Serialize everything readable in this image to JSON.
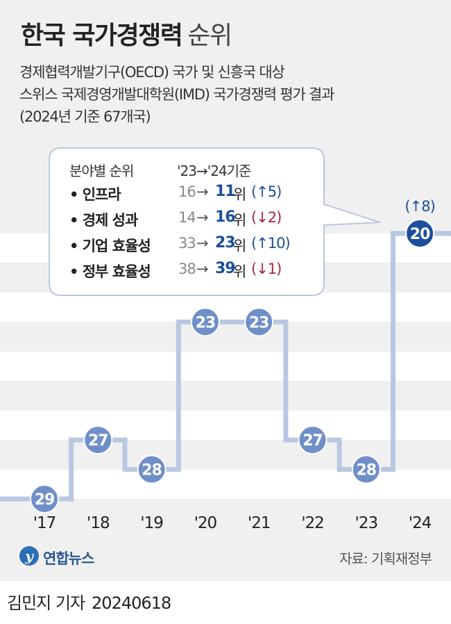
{
  "header": {
    "title_bold": "한국 국가경쟁력",
    "title_light": "순위",
    "subtitle_lines": [
      "경제협력개발기구(OECD) 국가 및 신흥국 대상",
      "스위스 국제경영개발대학원(IMD) 국가경쟁력 평가 결과",
      "(2024년 기준 67개국)"
    ]
  },
  "chart_data": {
    "type": "line",
    "step": true,
    "x": [
      "'17",
      "'18",
      "'19",
      "'20",
      "'21",
      "'22",
      "'23",
      "'24"
    ],
    "series": [
      {
        "values": [
          29,
          27,
          28,
          23,
          23,
          27,
          28,
          20
        ]
      }
    ],
    "value_labels": [
      "29",
      "27",
      "28",
      "23",
      "23",
      "27",
      "28",
      "20"
    ],
    "y_inverted": true,
    "ylim": [
      29,
      20
    ],
    "grid": true,
    "annotation": "(↑8)",
    "colors": {
      "line": "#b9c8e2",
      "marker": "#6f8fc9",
      "marker_last": "#1b4f9c",
      "marker_text": "#ffffff"
    }
  },
  "infobox": {
    "header_left": "분야별 순위",
    "header_right": "'23→'24기준",
    "rows": [
      {
        "name": "• 인프라",
        "prev": "16",
        "arrow": "→",
        "cur": "11",
        "unit": "위",
        "change": "(↑5)",
        "dir": "up"
      },
      {
        "name": "• 경제 성과",
        "prev": "14",
        "arrow": "→",
        "cur": "16",
        "unit": "위",
        "change": "(↓2)",
        "dir": "down"
      },
      {
        "name": "• 기업 효율성",
        "prev": "33",
        "arrow": "→",
        "cur": "23",
        "unit": "위",
        "change": "(↑10)",
        "dir": "up"
      },
      {
        "name": "• 정부 효율성",
        "prev": "38",
        "arrow": "→",
        "cur": "39",
        "unit": "위",
        "change": "(↓1)",
        "dir": "down"
      }
    ]
  },
  "footer": {
    "logo_mark": "y",
    "logo_text": "연합뉴스",
    "source": "자료: 기획재정부",
    "byline": "김민지 기자",
    "date": "20240618"
  }
}
